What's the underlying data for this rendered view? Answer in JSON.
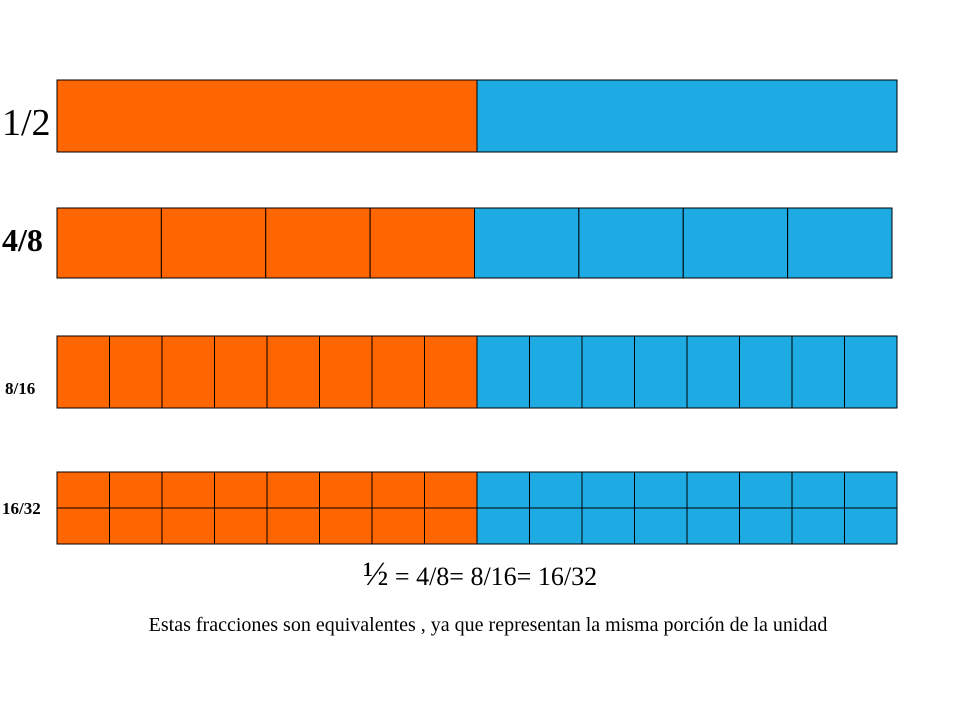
{
  "colors": {
    "filled": "#ff6600",
    "empty": "#1eabe3",
    "stroke": "#000000"
  },
  "rows": [
    {
      "label": "1/2",
      "denominator": 2,
      "numerator": 1,
      "subrows": 1
    },
    {
      "label": "4/8",
      "denominator": 8,
      "numerator": 4,
      "subrows": 1
    },
    {
      "label": "8/16",
      "denominator": 16,
      "numerator": 8,
      "subrows": 1
    },
    {
      "label": "16/32",
      "denominator": 32,
      "numerator": 16,
      "subrows": 2
    }
  ],
  "equation": {
    "half": "½",
    "rest": " = 4/8= 8/16= 16/32"
  },
  "caption": "Estas fracciones son equivalentes , ya que representan la misma porción de la unidad"
}
